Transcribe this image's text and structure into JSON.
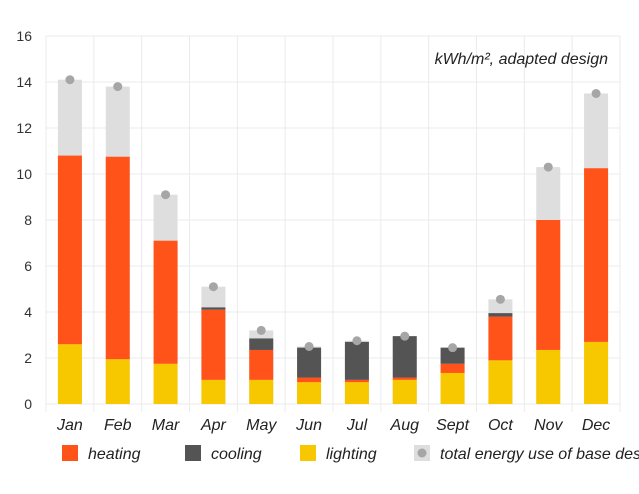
{
  "chart_data": {
    "type": "bar",
    "stacked": true,
    "annotation": "kWh/m², adapted design",
    "categories": [
      "Jan",
      "Feb",
      "Mar",
      "Apr",
      "May",
      "Jun",
      "Jul",
      "Aug",
      "Sept",
      "Oct",
      "Nov",
      "Dec"
    ],
    "ylim": [
      0,
      16
    ],
    "yticks": [
      0,
      2,
      4,
      6,
      8,
      10,
      12,
      14,
      16
    ],
    "grid": true,
    "legend_position": "bottom",
    "series": [
      {
        "name": "lighting",
        "color": "#f7c800",
        "values": [
          2.6,
          1.95,
          1.75,
          1.05,
          1.05,
          0.95,
          0.95,
          1.05,
          1.35,
          1.9,
          2.35,
          2.7
        ]
      },
      {
        "name": "heating",
        "color": "#ff5319",
        "values": [
          8.2,
          8.8,
          5.35,
          3.05,
          1.3,
          0.2,
          0.1,
          0.1,
          0.4,
          1.9,
          5.65,
          7.55
        ]
      },
      {
        "name": "cooling",
        "color": "#545454",
        "values": [
          0,
          0,
          0,
          0.1,
          0.5,
          1.3,
          1.65,
          1.8,
          0.7,
          0.15,
          0,
          0
        ]
      }
    ],
    "base_design": {
      "name": "total energy use of base design",
      "bar_color": "#dedede",
      "marker_color": "#a6a6a6",
      "values": [
        14.1,
        13.8,
        9.1,
        5.1,
        3.2,
        2.5,
        2.75,
        2.95,
        2.45,
        4.55,
        10.3,
        13.5
      ]
    }
  },
  "legend": [
    {
      "label": "heating",
      "color": "#ff5319",
      "shape": "square"
    },
    {
      "label": "cooling",
      "color": "#545454",
      "shape": "square"
    },
    {
      "label": "lighting",
      "color": "#f7c800",
      "shape": "square"
    },
    {
      "label": "total energy use of base design",
      "color": "#dedede",
      "marker_color": "#a6a6a6",
      "shape": "square-dot"
    }
  ]
}
